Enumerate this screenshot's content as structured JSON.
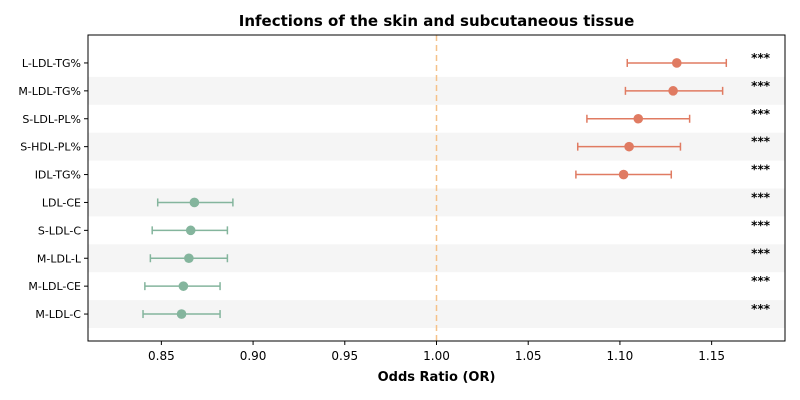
{
  "chart_data": {
    "type": "forest",
    "title": "Infections of the skin and subcutaneous tissue",
    "xlabel": "Odds Ratio (OR)",
    "ylabel": "",
    "xlim": [
      0.81,
      1.19
    ],
    "xticks": [
      0.85,
      0.9,
      0.95,
      1.0,
      1.05,
      1.1,
      1.15
    ],
    "xtick_labels": [
      "0.85",
      "0.90",
      "0.95",
      "1.00",
      "1.05",
      "1.10",
      "1.15"
    ],
    "reference_line": 1.0,
    "grid": false,
    "colors": {
      "positive": "#E07B62",
      "negative": "#84B59D",
      "reference": "#F5C28A",
      "stripe": "#F5F5F5"
    },
    "rows": [
      {
        "label": "L-LDL-TG%",
        "or": 1.131,
        "lower": 1.104,
        "upper": 1.158,
        "sig": "***"
      },
      {
        "label": "M-LDL-TG%",
        "or": 1.129,
        "lower": 1.103,
        "upper": 1.156,
        "sig": "***"
      },
      {
        "label": "S-LDL-PL%",
        "or": 1.11,
        "lower": 1.082,
        "upper": 1.138,
        "sig": "***"
      },
      {
        "label": "S-HDL-PL%",
        "or": 1.105,
        "lower": 1.077,
        "upper": 1.133,
        "sig": "***"
      },
      {
        "label": "IDL-TG%",
        "or": 1.102,
        "lower": 1.076,
        "upper": 1.128,
        "sig": "***"
      },
      {
        "label": "LDL-CE",
        "or": 0.868,
        "lower": 0.848,
        "upper": 0.889,
        "sig": "***"
      },
      {
        "label": "S-LDL-C",
        "or": 0.866,
        "lower": 0.845,
        "upper": 0.886,
        "sig": "***"
      },
      {
        "label": "M-LDL-L",
        "or": 0.865,
        "lower": 0.844,
        "upper": 0.886,
        "sig": "***"
      },
      {
        "label": "M-LDL-CE",
        "or": 0.862,
        "lower": 0.841,
        "upper": 0.882,
        "sig": "***"
      },
      {
        "label": "M-LDL-C",
        "or": 0.861,
        "lower": 0.84,
        "upper": 0.882,
        "sig": "***"
      }
    ]
  }
}
